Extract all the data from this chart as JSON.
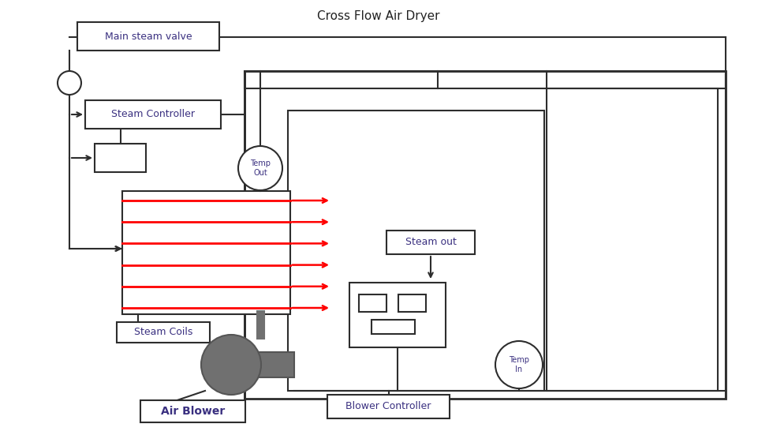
{
  "bg_color": "#ffffff",
  "line_color": "#2d2d2d",
  "red_color": "#ff0000",
  "gray_color": "#707070",
  "text_color": "#3a3080",
  "lw": 1.5,
  "main_steam_valve_label": "Main steam valve",
  "steam_controller_label": "Steam Controller",
  "steam_coils_label": "Steam Coils",
  "air_blower_label": "Air Blower",
  "blower_controller_label": "Blower Controller",
  "steam_out_label": "Steam out",
  "temp_out_label": "Temp\nOut",
  "temp_in_label": "Temp\nIn"
}
